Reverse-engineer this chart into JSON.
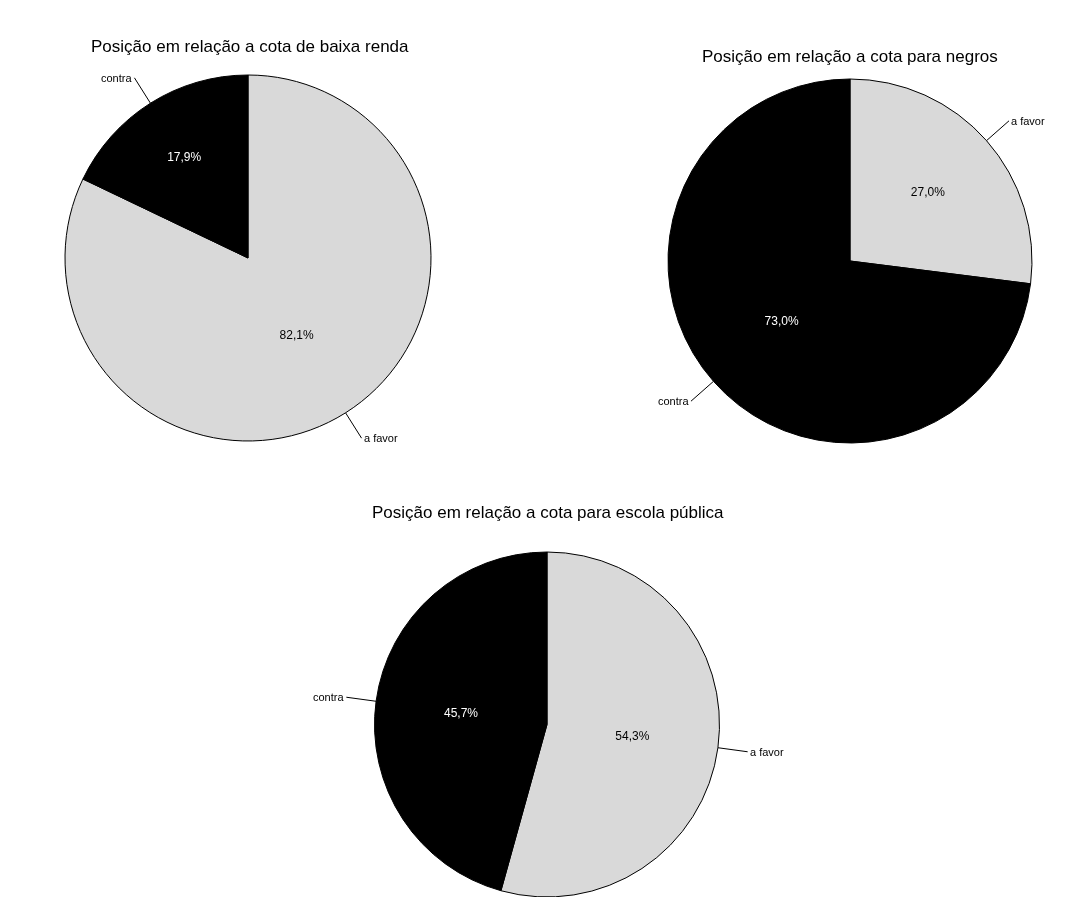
{
  "chart_data": [
    {
      "type": "pie",
      "title": "Posição em relação a cota de baixa renda",
      "categories": [
        "a favor",
        "contra"
      ],
      "values": [
        82.1,
        17.9
      ],
      "colors": [
        "#d9d9d9",
        "#000000"
      ],
      "value_labels": [
        "82,1%",
        "17,9%"
      ]
    },
    {
      "type": "pie",
      "title": "Posição em relação a cota para negros",
      "categories": [
        "a favor",
        "contra"
      ],
      "values": [
        27.0,
        73.0
      ],
      "colors": [
        "#d9d9d9",
        "#000000"
      ],
      "value_labels": [
        "27,0%",
        "73,0%"
      ]
    },
    {
      "type": "pie",
      "title": "Posição em relação a cota para escola pública",
      "categories": [
        "a favor",
        "contra"
      ],
      "values": [
        54.3,
        45.7
      ],
      "colors": [
        "#d9d9d9",
        "#000000"
      ],
      "value_labels": [
        "54,3%",
        "45,7%"
      ]
    }
  ]
}
